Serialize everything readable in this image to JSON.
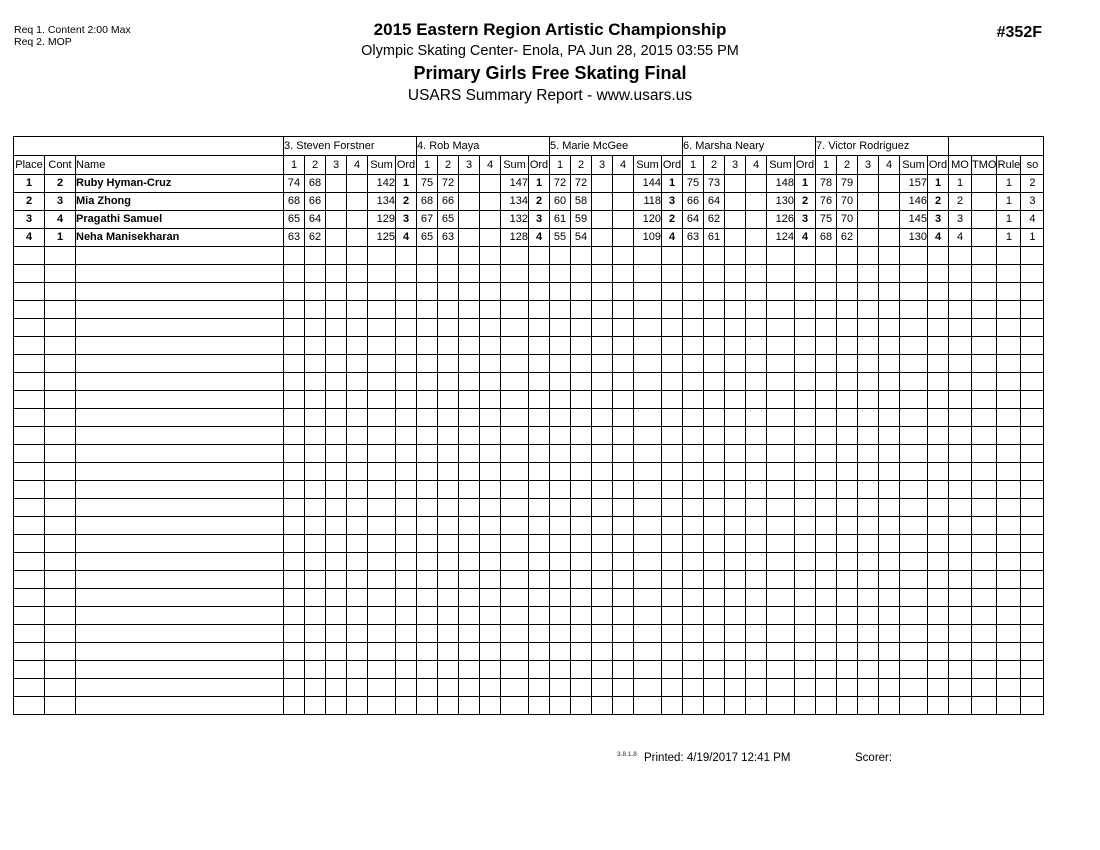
{
  "colors": {
    "text": "#000000",
    "background": "#ffffff"
  },
  "header": {
    "req_line1": "Req  1.  Content 2:00 Max",
    "req_line2": "Req  2.  MOP",
    "title": "2015 Eastern Region Artistic Championship",
    "venue_line": "Olympic Skating Center- Enola, PA  Jun 28, 2015  03:55 PM",
    "event_title": "Primary Girls Free Skating Final",
    "report_line": "USARS Summary Report - www.usars.us",
    "sheet_number": "#352F"
  },
  "table": {
    "judges": [
      "3.  Steven Forstner",
      "4.  Rob Maya",
      "5.  Marie McGee",
      "6.  Marsha Neary",
      "7.  Victor Rodriguez"
    ],
    "left_headers": [
      "Place",
      "Cont",
      "Name"
    ],
    "judge_subheaders": [
      "1",
      "2",
      "3",
      "4",
      "Sum",
      "Ord"
    ],
    "right_headers": [
      "MO",
      "TMO",
      "Rule",
      "so"
    ],
    "rows": [
      {
        "place": "1",
        "cont": "2",
        "name": "Ruby Hyman-Cruz",
        "judges": [
          [
            "74",
            "68",
            "",
            "",
            "142",
            "1"
          ],
          [
            "75",
            "72",
            "",
            "",
            "147",
            "1"
          ],
          [
            "72",
            "72",
            "",
            "",
            "144",
            "1"
          ],
          [
            "75",
            "73",
            "",
            "",
            "148",
            "1"
          ],
          [
            "78",
            "79",
            "",
            "",
            "157",
            "1"
          ]
        ],
        "mo": "1",
        "tmo": "",
        "rule": "1",
        "so": "2"
      },
      {
        "place": "2",
        "cont": "3",
        "name": "Mia Zhong",
        "judges": [
          [
            "68",
            "66",
            "",
            "",
            "134",
            "2"
          ],
          [
            "68",
            "66",
            "",
            "",
            "134",
            "2"
          ],
          [
            "60",
            "58",
            "",
            "",
            "118",
            "3"
          ],
          [
            "66",
            "64",
            "",
            "",
            "130",
            "2"
          ],
          [
            "76",
            "70",
            "",
            "",
            "146",
            "2"
          ]
        ],
        "mo": "2",
        "tmo": "",
        "rule": "1",
        "so": "3"
      },
      {
        "place": "3",
        "cont": "4",
        "name": "Pragathi Samuel",
        "judges": [
          [
            "65",
            "64",
            "",
            "",
            "129",
            "3"
          ],
          [
            "67",
            "65",
            "",
            "",
            "132",
            "3"
          ],
          [
            "61",
            "59",
            "",
            "",
            "120",
            "2"
          ],
          [
            "64",
            "62",
            "",
            "",
            "126",
            "3"
          ],
          [
            "75",
            "70",
            "",
            "",
            "145",
            "3"
          ]
        ],
        "mo": "3",
        "tmo": "",
        "rule": "1",
        "so": "4"
      },
      {
        "place": "4",
        "cont": "1",
        "name": "Neha Manisekharan",
        "judges": [
          [
            "63",
            "62",
            "",
            "",
            "125",
            "4"
          ],
          [
            "65",
            "63",
            "",
            "",
            "128",
            "4"
          ],
          [
            "55",
            "54",
            "",
            "",
            "109",
            "4"
          ],
          [
            "63",
            "61",
            "",
            "",
            "124",
            "4"
          ],
          [
            "68",
            "62",
            "",
            "",
            "130",
            "4"
          ]
        ],
        "mo": "4",
        "tmo": "",
        "rule": "1",
        "so": "1"
      }
    ],
    "empty_row_count": 26
  },
  "footer": {
    "version": "3.8.1.8",
    "printed_text": "Printed:  4/19/2017  12:41 PM",
    "scorer_label": "Scorer:"
  }
}
